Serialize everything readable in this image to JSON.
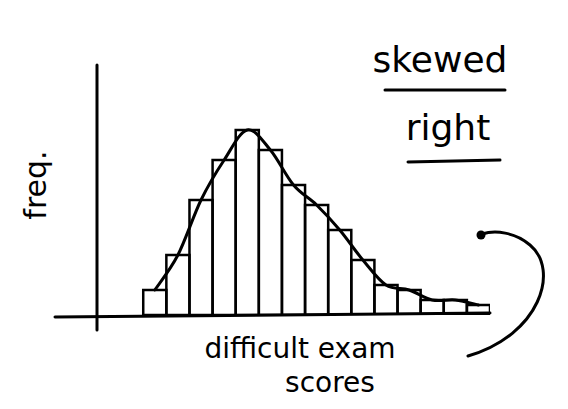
{
  "chart_data": {
    "type": "histogram",
    "annotation": "skewed right",
    "xlabel": "difficult exam scores",
    "ylabel": "freq.",
    "bins": [
      2,
      3,
      4,
      5,
      6,
      7,
      8,
      9,
      10,
      11,
      12,
      13,
      14,
      15,
      16,
      17
    ],
    "counts": [
      2.5,
      6,
      11.5,
      15.5,
      18.5,
      16.5,
      13,
      11,
      8.5,
      5.5,
      3,
      2.5,
      1.5,
      1.5,
      1
    ],
    "xlim": [
      0,
      17
    ],
    "ylim": [
      0,
      25
    ],
    "tick_labels": false,
    "color": "#000000"
  }
}
